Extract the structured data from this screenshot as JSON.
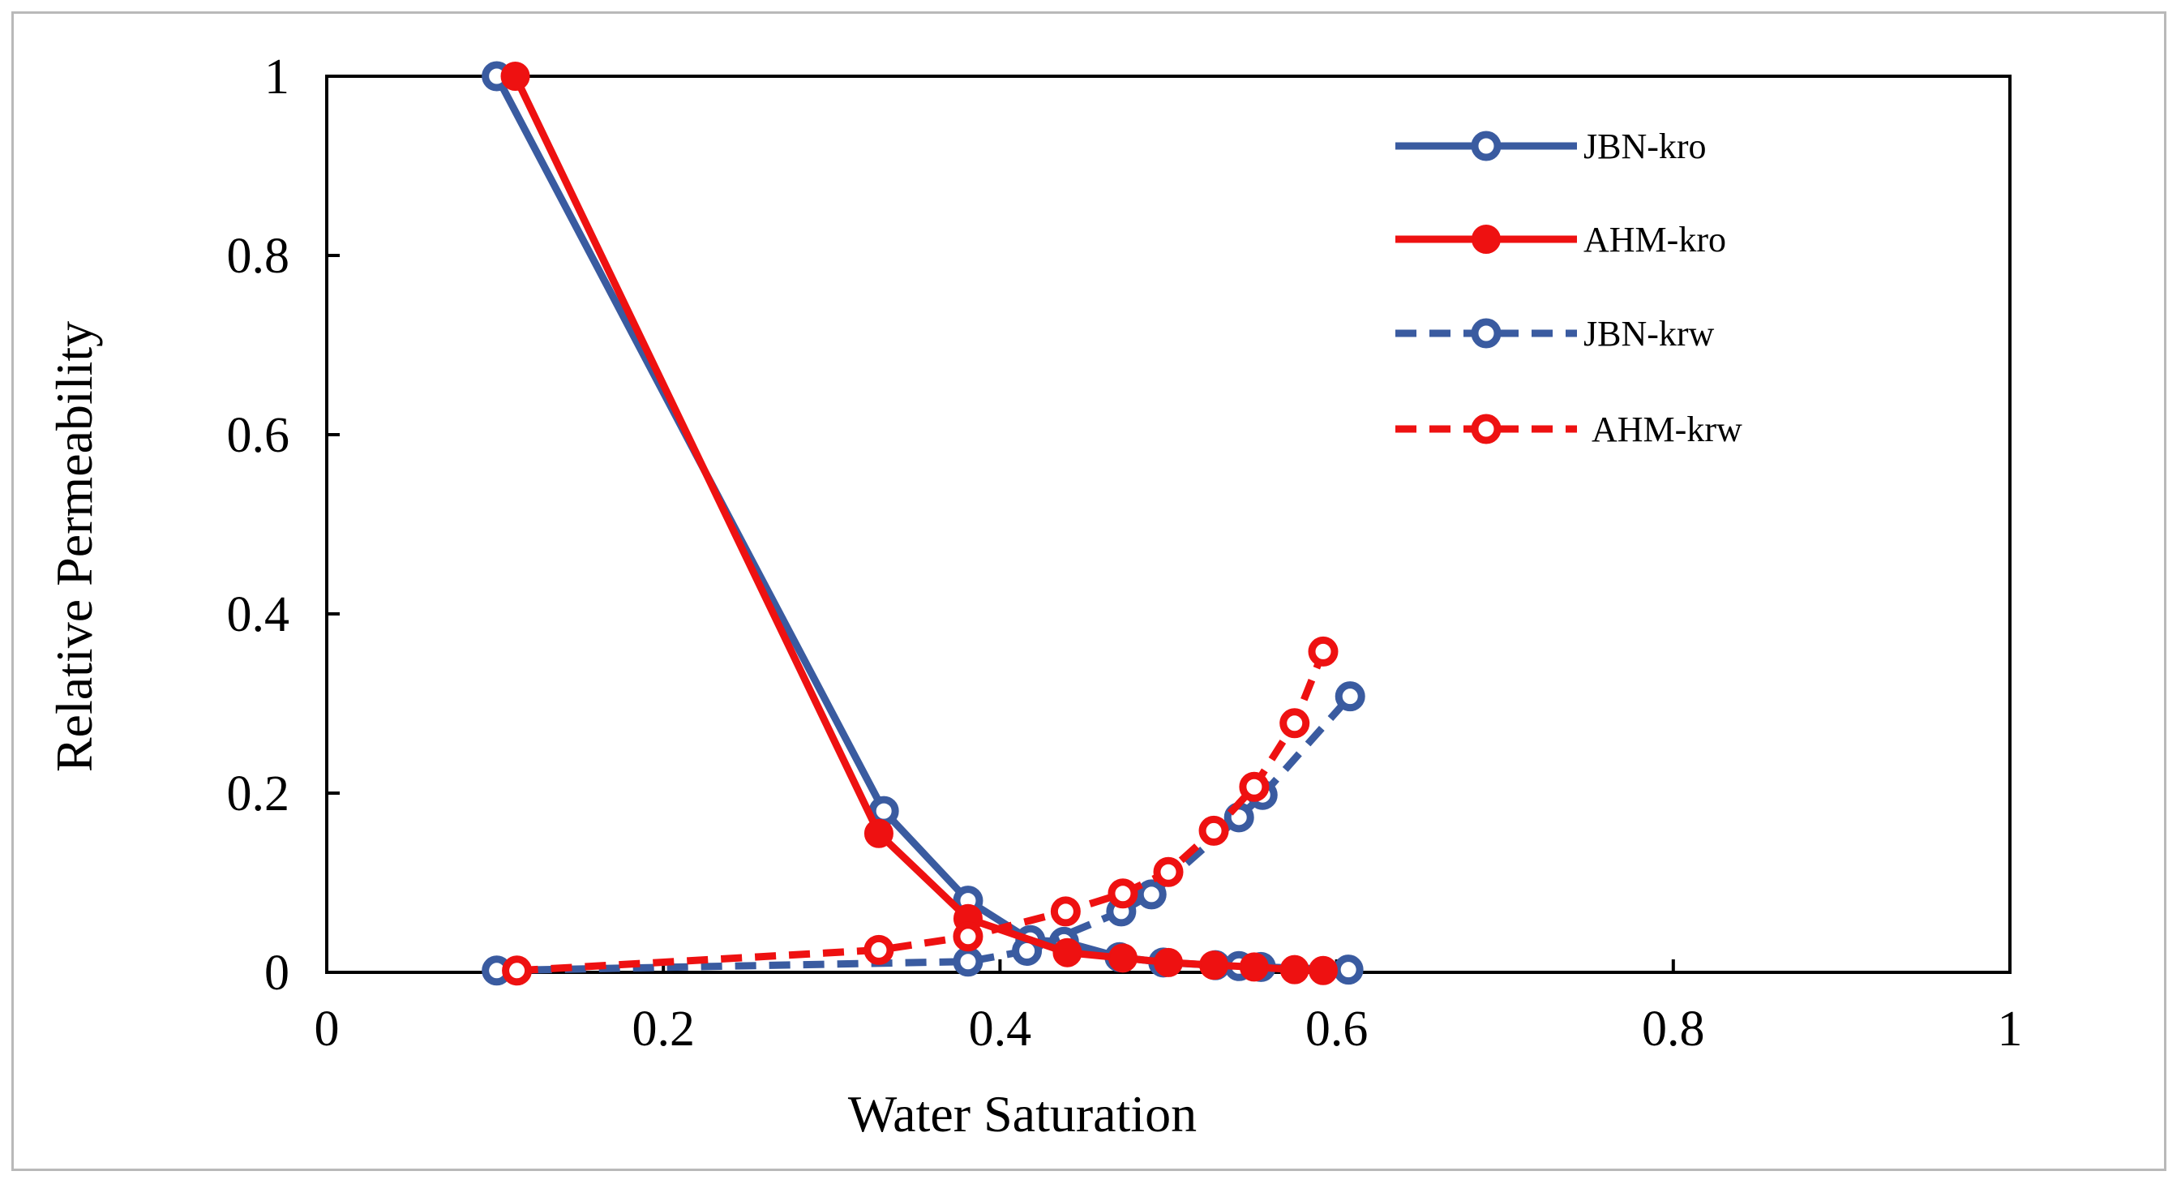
{
  "chart_data": {
    "type": "scatter",
    "xlabel": "Water Saturation",
    "ylabel": "Relative Permeability",
    "xlim": [
      0,
      1
    ],
    "ylim": [
      0,
      1
    ],
    "xticks": [
      "0",
      "0.2",
      "0.4",
      "0.6",
      "0.8",
      "1"
    ],
    "yticks": [
      "0",
      "0.2",
      "0.4",
      "0.6",
      "0.8",
      "1"
    ],
    "grid": false,
    "legend_position": "top-right",
    "series": [
      {
        "name": "JBN-kro",
        "color": "#3a5ba0",
        "line": "solid",
        "marker": "open-circle",
        "x": [
          0.101,
          0.331,
          0.381,
          0.418,
          0.438,
          0.471,
          0.497,
          0.528,
          0.542,
          0.555,
          0.607
        ],
        "y": [
          1.0,
          0.18,
          0.08,
          0.036,
          0.034,
          0.017,
          0.011,
          0.008,
          0.007,
          0.006,
          0.003
        ]
      },
      {
        "name": "AHM-kro",
        "color": "#ee1111",
        "line": "solid",
        "marker": "filled-circle",
        "x": [
          0.112,
          0.328,
          0.381,
          0.44,
          0.473,
          0.5,
          0.527,
          0.551,
          0.575,
          0.592
        ],
        "y": [
          1.0,
          0.155,
          0.06,
          0.022,
          0.016,
          0.011,
          0.008,
          0.006,
          0.003,
          0.002
        ]
      },
      {
        "name": "JBN-krw",
        "color": "#3a5ba0",
        "line": "dashed",
        "marker": "open-circle",
        "x": [
          0.101,
          0.381,
          0.416,
          0.472,
          0.49,
          0.542,
          0.556,
          0.608
        ],
        "y": [
          0.002,
          0.012,
          0.024,
          0.068,
          0.087,
          0.173,
          0.198,
          0.308
        ]
      },
      {
        "name": "AHM-krw",
        "color": "#ee1111",
        "line": "dashed",
        "marker": "open-circle",
        "x": [
          0.113,
          0.328,
          0.381,
          0.439,
          0.473,
          0.5,
          0.527,
          0.551,
          0.575,
          0.592
        ],
        "y": [
          0.002,
          0.025,
          0.04,
          0.068,
          0.088,
          0.112,
          0.158,
          0.207,
          0.278,
          0.358
        ]
      }
    ]
  }
}
